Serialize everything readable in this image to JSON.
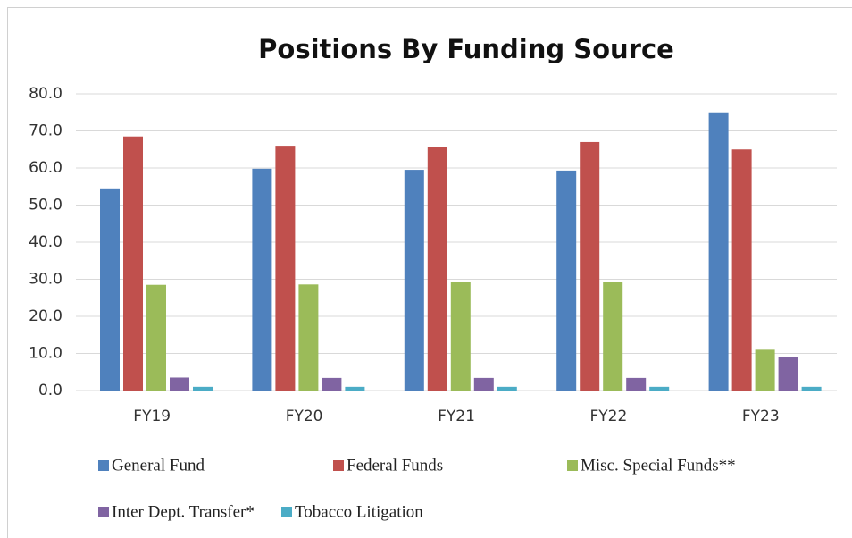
{
  "chart_data": {
    "type": "bar",
    "title": "Positions By Funding Source",
    "categories": [
      "FY19",
      "FY20",
      "FY21",
      "FY22",
      "FY23"
    ],
    "series": [
      {
        "name": "General Fund",
        "color": "#4f81bd",
        "values": [
          54.5,
          59.8,
          59.5,
          59.3,
          75.0
        ]
      },
      {
        "name": "Federal Funds",
        "color": "#c0504d",
        "values": [
          68.5,
          66.0,
          65.7,
          67.0,
          65.0
        ]
      },
      {
        "name": "Misc. Special Funds**",
        "color": "#9bbb59",
        "values": [
          28.5,
          28.6,
          29.3,
          29.3,
          11.0
        ]
      },
      {
        "name": "Inter Dept. Transfer*",
        "color": "#8064a2",
        "values": [
          3.5,
          3.4,
          3.4,
          3.4,
          9.0
        ]
      },
      {
        "name": "Tobacco Litigation",
        "color": "#4bacc6",
        "values": [
          1.0,
          1.0,
          1.0,
          1.0,
          1.0
        ]
      }
    ],
    "ylim": [
      0,
      80
    ],
    "yticks": [
      {
        "value": 0,
        "label": "0.0"
      },
      {
        "value": 10,
        "label": "10.0"
      },
      {
        "value": 20,
        "label": "20.0"
      },
      {
        "value": 30,
        "label": "30.0"
      },
      {
        "value": 40,
        "label": "40.0"
      },
      {
        "value": 50,
        "label": "50.0"
      },
      {
        "value": 60,
        "label": "60.0"
      },
      {
        "value": 70,
        "label": "70.0"
      },
      {
        "value": 80,
        "label": "80.0"
      }
    ],
    "grid": true,
    "legend": "bottom"
  }
}
